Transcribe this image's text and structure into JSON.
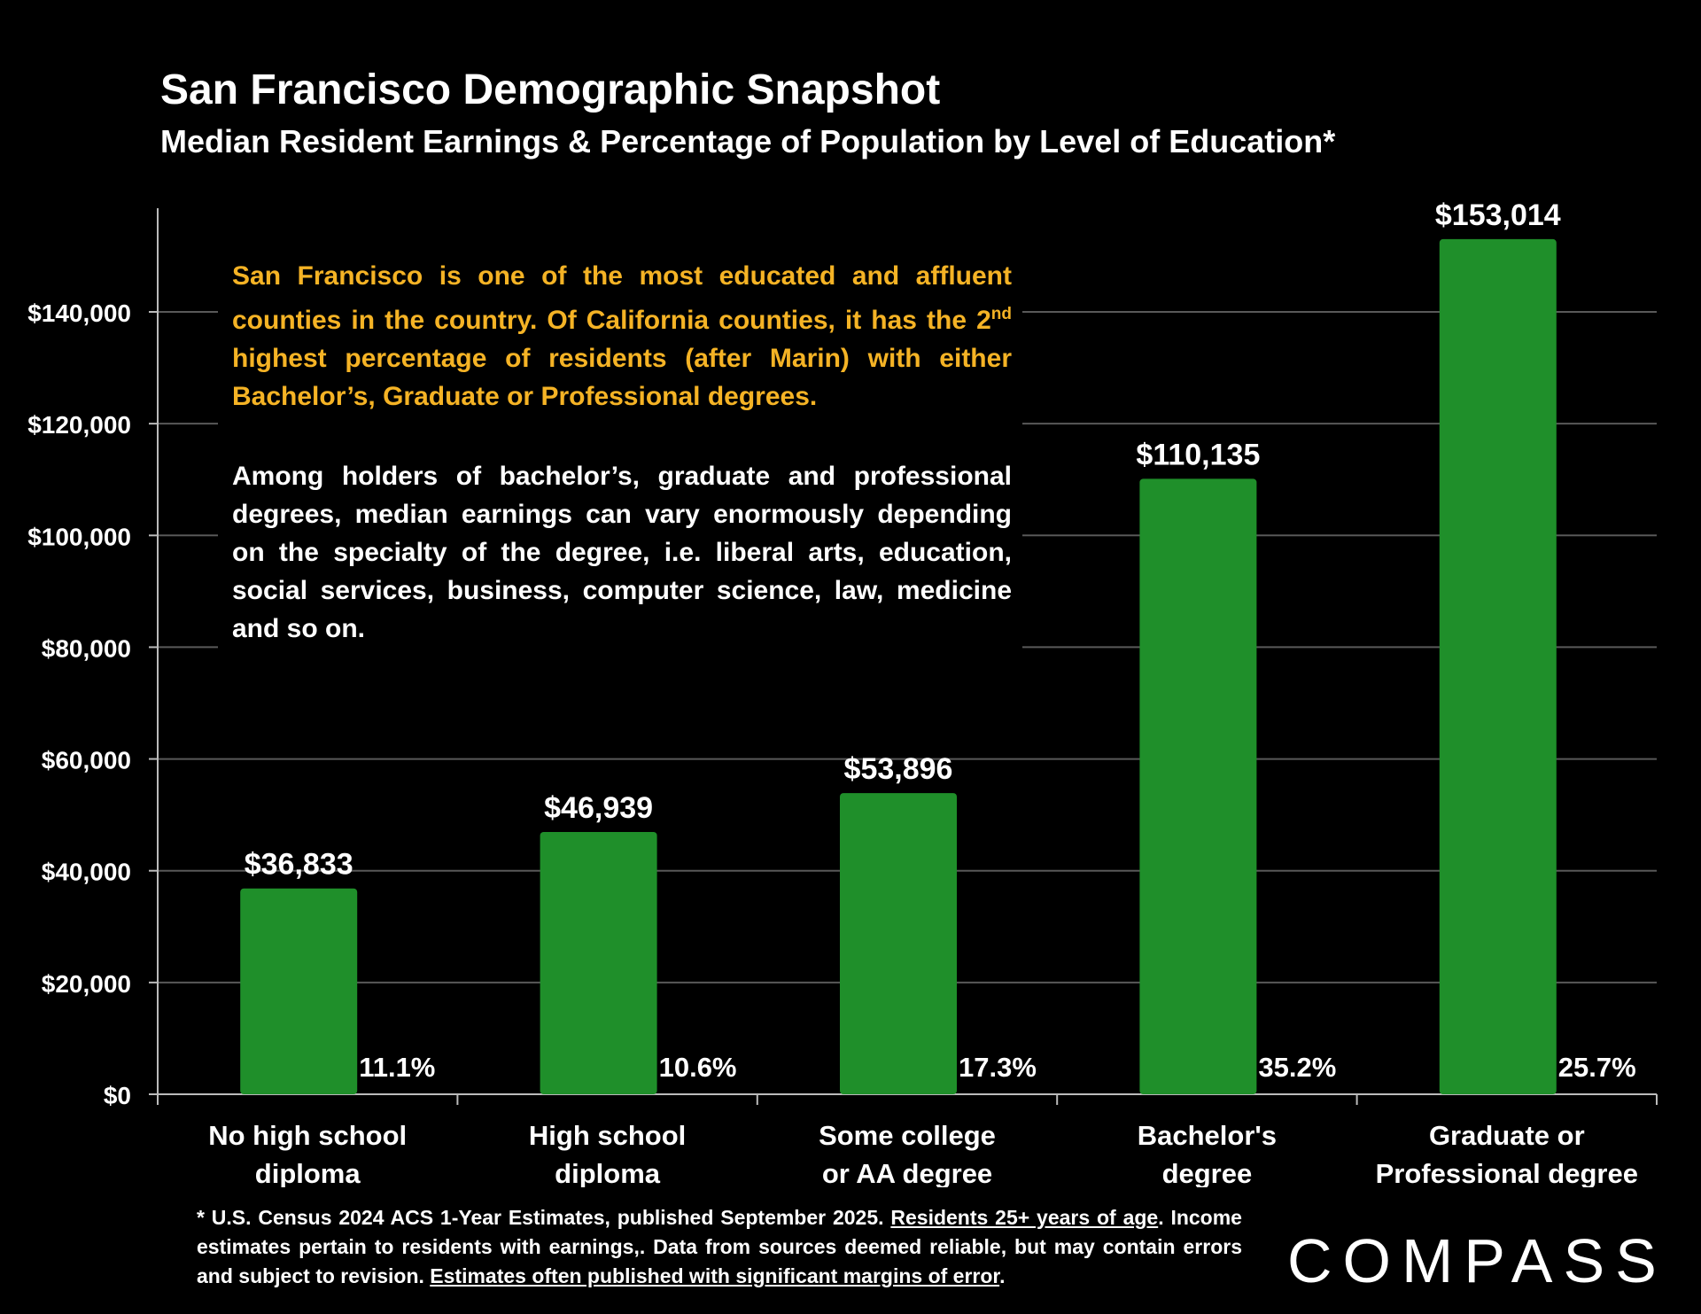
{
  "header": {
    "title": "San Francisco Demographic Snapshot",
    "subtitle": "Median Resident Earnings & Percentage of Population by Level of Education*"
  },
  "callout": {
    "paragraph1_a": "San Francisco is one of the most educated and affluent counties in the country. Of California counties, it has the 2",
    "paragraph1_sup": "nd",
    "paragraph1_b": " highest percentage of residents (after Marin) with either Bachelor’s, Graduate or Professional degrees.",
    "paragraph2": "Among holders of bachelor’s, graduate and professional degrees, median earnings can vary enormously depending on the specialty of the degree, i.e. liberal arts, education, social services, business, computer science, law, medicine and so on."
  },
  "footnote": {
    "part1": "* U.S. Census 2024 ACS 1-Year Estimates, published September 2025. ",
    "link1": "Residents 25+ years of age",
    "part2": ". Income estimates pertain to residents with earnings,. Data from sources deemed reliable, but may contain errors and subject to revision. ",
    "link2": "Estimates often published with significant margins of error",
    "part3": "."
  },
  "logo": {
    "text": "COMPASS"
  },
  "chart_data": {
    "type": "bar",
    "categories": [
      [
        "No high school",
        "diploma"
      ],
      [
        "High school",
        "diploma"
      ],
      [
        "Some college",
        "or AA degree"
      ],
      [
        "Bachelor's",
        "degree"
      ],
      [
        "Graduate or",
        "Professional degree"
      ]
    ],
    "values": [
      36833,
      46939,
      53896,
      110135,
      153014
    ],
    "value_labels": [
      "$36,833",
      "$46,939",
      "$53,896",
      "$110,135",
      "$153,014"
    ],
    "percent_labels": [
      "11.1%",
      "10.6%",
      "17.3%",
      "35.2%",
      "25.7%"
    ],
    "percent_values": [
      11.1,
      10.6,
      17.3,
      35.2,
      25.7
    ],
    "ylim": [
      0,
      155000
    ],
    "yticks": [
      0,
      20000,
      40000,
      60000,
      80000,
      100000,
      120000,
      140000
    ],
    "ytick_labels": [
      "$0",
      "$20,000",
      "$40,000",
      "$60,000",
      "$80,000",
      "$100,000",
      "$120,000",
      "$140,000"
    ],
    "grid": true,
    "bar_color": "#1f8f2a",
    "grid_color": "#595959"
  }
}
